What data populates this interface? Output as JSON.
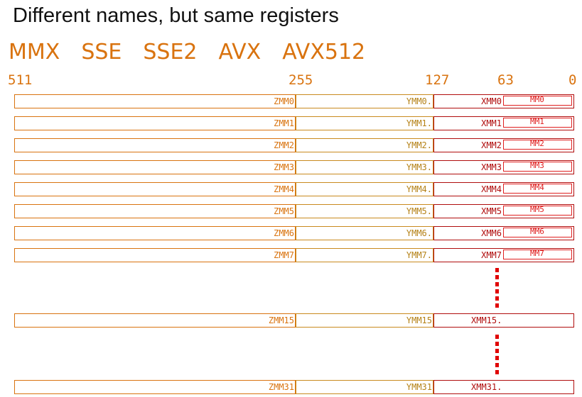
{
  "title": "Different names, but same registers",
  "isa_names": [
    "MMX",
    "SSE",
    "SSE2",
    "AVX",
    "AVX512"
  ],
  "bit_labels": {
    "b511": "511",
    "b255": "255",
    "b127": "127",
    "b63": "63",
    "b0": "0"
  },
  "registers": [
    {
      "zmm": "ZMM0",
      "ymm": "YMM0.",
      "xmm": "XMM0",
      "mm": "MM0"
    },
    {
      "zmm": "ZMM1",
      "ymm": "YMM1.",
      "xmm": "XMM1",
      "mm": "MM1"
    },
    {
      "zmm": "ZMM2",
      "ymm": "YMM2.",
      "xmm": "XMM2",
      "mm": "MM2"
    },
    {
      "zmm": "ZMM3",
      "ymm": "YMM3.",
      "xmm": "XMM3",
      "mm": "MM3"
    },
    {
      "zmm": "ZMM4",
      "ymm": "YMM4.",
      "xmm": "XMM4",
      "mm": "MM4"
    },
    {
      "zmm": "ZMM5",
      "ymm": "YMM5.",
      "xmm": "XMM5",
      "mm": "MM5"
    },
    {
      "zmm": "ZMM6",
      "ymm": "YMM6.",
      "xmm": "XMM6",
      "mm": "MM6"
    },
    {
      "zmm": "ZMM7",
      "ymm": "YMM7.",
      "xmm": "XMM7",
      "mm": "MM7"
    },
    {
      "zmm": "ZMM15",
      "ymm": "YMM15",
      "xmm": "XMM15."
    },
    {
      "zmm": "ZMM31",
      "ymm": "YMM31",
      "xmm": "XMM31."
    }
  ]
}
